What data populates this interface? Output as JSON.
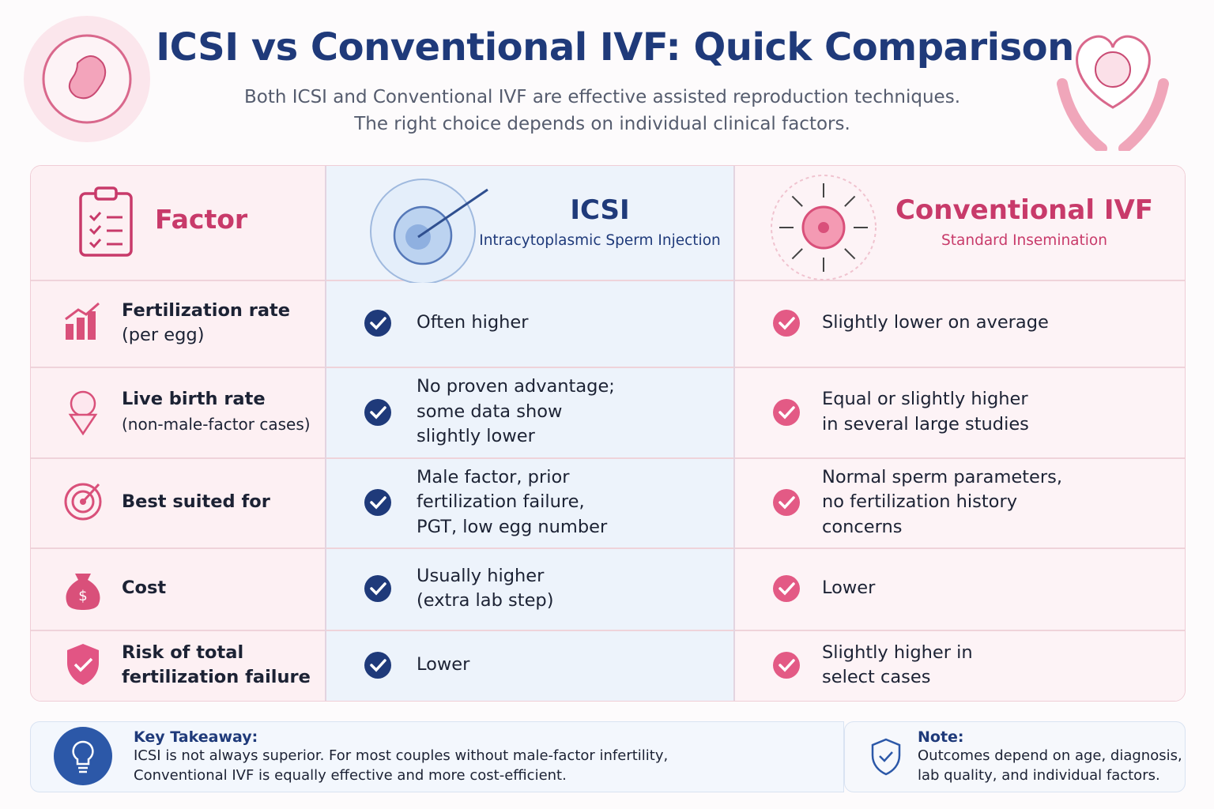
{
  "header": {
    "title": "ICSI vs Conventional IVF: Quick Comparison",
    "subtitle": [
      "Both ICSI and Conventional IVF are effective assisted reproduction techniques.",
      "The right choice depends on individual clinical factors."
    ]
  },
  "table": {
    "columns": [
      {
        "title": "Factor"
      },
      {
        "title": "ICSI",
        "subtitle": "Intracytoplasmic Sperm Injection"
      },
      {
        "title": "Conventional IVF",
        "subtitle": "Standard Insemination"
      }
    ],
    "rows": [
      {
        "factor": [
          "Fertilization rate"
        ],
        "factor_note": "(per egg)",
        "icsi": [
          "Often higher"
        ],
        "ivf": [
          "Slightly lower on average"
        ]
      },
      {
        "factor": [
          "Live birth rate"
        ],
        "factor_note": "(non-male-factor cases)",
        "icsi": [
          "No proven advantage;",
          "some data show",
          "slightly lower"
        ],
        "ivf": [
          "Equal or slightly higher",
          "in several large studies"
        ]
      },
      {
        "factor": [
          "Best suited for"
        ],
        "icsi": [
          "Male factor, prior",
          "fertilization failure,",
          "PGT, low egg number"
        ],
        "ivf": [
          "Normal sperm parameters,",
          "no fertilization history",
          "concerns"
        ]
      },
      {
        "factor": [
          "Cost"
        ],
        "icsi": [
          "Usually higher",
          "(extra lab step)"
        ],
        "ivf": [
          "Lower"
        ]
      },
      {
        "factor": [
          "Risk of total",
          "fertilization failure"
        ],
        "icsi": [
          "Lower"
        ],
        "ivf": [
          "Slightly higher in",
          "select cases"
        ]
      }
    ]
  },
  "footer": {
    "takeaway": {
      "title": "Key Takeaway:",
      "lines": [
        "ICSI is not always superior. For most couples without male-factor infertility,",
        "Conventional IVF is equally effective and more cost-efficient."
      ]
    },
    "note": {
      "title": "Note:",
      "lines": [
        "Outcomes depend on age, diagnosis,",
        "lab quality, and individual factors."
      ]
    }
  }
}
